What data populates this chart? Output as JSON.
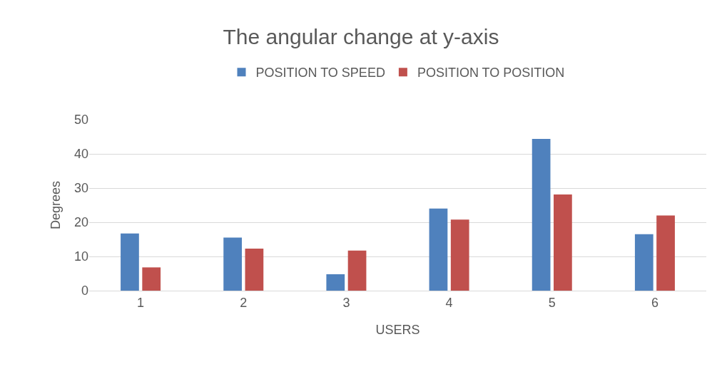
{
  "chart_data": {
    "type": "bar",
    "title": "The angular change at y-axis",
    "xlabel": "USERS",
    "ylabel": "Degrees",
    "categories": [
      "1",
      "2",
      "3",
      "4",
      "5",
      "6"
    ],
    "series": [
      {
        "name": "POSITION TO SPEED",
        "color": "#4f81bd",
        "values": [
          16.7,
          15.5,
          4.8,
          24.0,
          44.4,
          16.5
        ]
      },
      {
        "name": "POSITION TO POSITION",
        "color": "#c0504d",
        "values": [
          6.8,
          12.3,
          11.7,
          20.8,
          28.1,
          22.0
        ]
      }
    ],
    "ylim": [
      0,
      50
    ],
    "yticks": [
      0,
      10,
      20,
      30,
      40,
      50
    ],
    "grid": "y",
    "legend": "top"
  }
}
